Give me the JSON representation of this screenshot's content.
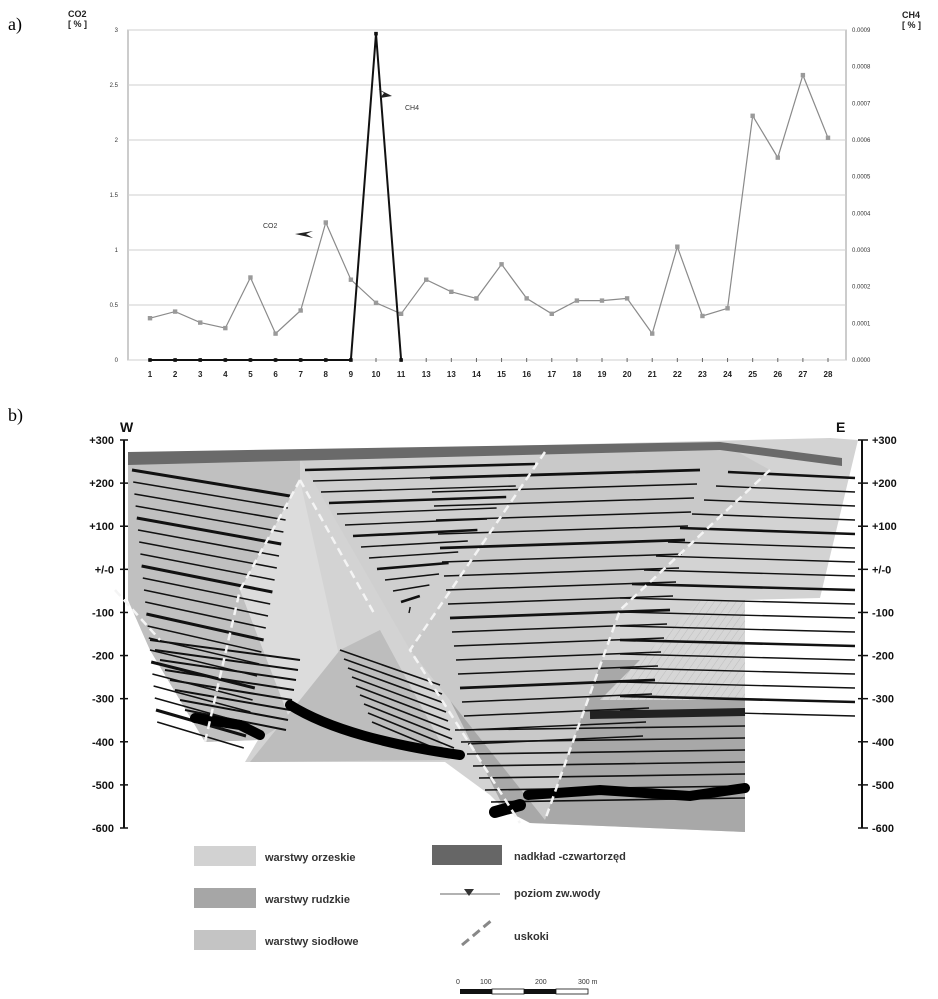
{
  "panel_a_label": "a)",
  "panel_b_label": "b)",
  "chart_data": [
    {
      "type": "line",
      "ylabel_left": "CO2\n[ % ]",
      "ylabel_right": "CH4\n[ % ]",
      "categories": [
        "1",
        "2",
        "3",
        "4",
        "5",
        "6",
        "7",
        "8",
        "9",
        "10",
        "11",
        "13",
        "13",
        "14",
        "15",
        "16",
        "17",
        "18",
        "19",
        "20",
        "21",
        "22",
        "23",
        "24",
        "25",
        "26",
        "27",
        "28"
      ],
      "y_left_ticks": [
        "0",
        "0.5",
        "1",
        "1.5",
        "2",
        "2.5",
        "3"
      ],
      "y_right_ticks": [
        "0.0000",
        "0.0001",
        "0.0002",
        "0.0003",
        "0.0004",
        "0.0005",
        "0.0006",
        "0.0007",
        "0.0008",
        "0.0009"
      ],
      "ylim_left": [
        0,
        3
      ],
      "ylim_right": [
        0,
        0.0009
      ],
      "series": [
        {
          "name": "CO2",
          "axis": "left",
          "values": [
            0.38,
            0.44,
            0.34,
            0.29,
            0.75,
            0.24,
            0.45,
            1.25,
            0.73,
            0.52,
            0.42,
            0.73,
            0.62,
            0.56,
            0.87,
            0.56,
            0.42,
            0.54,
            0.54,
            0.56,
            0.24,
            1.03,
            0.4,
            0.47,
            2.22,
            1.84,
            2.59,
            2.02
          ]
        },
        {
          "name": "CH4",
          "axis": "right",
          "values": [
            0,
            0,
            0,
            0,
            0,
            0,
            0,
            0,
            0,
            0.00089,
            0,
            null,
            null,
            null,
            null,
            null,
            null,
            null,
            null,
            null,
            null,
            null,
            null,
            null,
            null,
            null,
            null,
            null
          ]
        }
      ],
      "annotations": [
        {
          "text": "CO2",
          "target_series": "CO2"
        },
        {
          "text": "CH4",
          "target_series": "CH4"
        }
      ],
      "grid": "horizontal"
    },
    {
      "type": "cross-section",
      "compass_left": "W",
      "compass_right": "E",
      "depth_ticks": [
        "+300",
        "+200",
        "+100",
        "+/-0",
        "-100",
        "-200",
        "-300",
        "-400",
        "-500",
        "-600"
      ],
      "depth_range": [
        -600,
        300
      ],
      "legend": [
        {
          "label": "warstwy orzeskie",
          "color": "#d2d2d2"
        },
        {
          "label": "warstwy rudzkie",
          "color": "#a6a6a6"
        },
        {
          "label": "warstwy siodłowe",
          "color": "#c4c4c4"
        },
        {
          "label": "nadkład -czwartorzęd",
          "color": "#666666"
        },
        {
          "label": "poziom zw.wody",
          "color": "#555555"
        },
        {
          "label": "uskoki",
          "color": "#888888"
        }
      ],
      "scale_labels": [
        "0",
        "100",
        "200",
        "300 m"
      ]
    }
  ]
}
